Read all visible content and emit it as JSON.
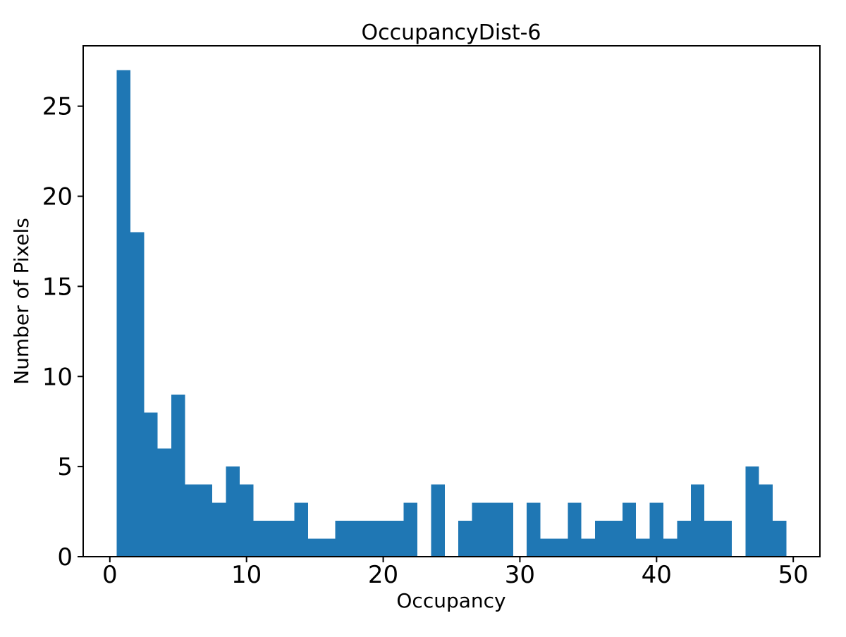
{
  "figure": {
    "background": "#ffffff",
    "text_color": "#000000",
    "spine_color": "#000000"
  },
  "chart_data": {
    "type": "bar",
    "subtype": "histogram",
    "title": "OccupancyDist-6",
    "xlabel": "Occupancy",
    "ylabel": "Number of Pixels",
    "bar_color": "#1f77b4",
    "bin_start": 0.5,
    "bin_width": 1,
    "counts": [
      27,
      18,
      8,
      6,
      9,
      4,
      4,
      3,
      5,
      4,
      2,
      2,
      2,
      3,
      1,
      1,
      2,
      2,
      2,
      2,
      2,
      3,
      0,
      4,
      0,
      2,
      3,
      3,
      3,
      0,
      3,
      1,
      1,
      3,
      1,
      2,
      2,
      3,
      1,
      3,
      1,
      2,
      4,
      2,
      2,
      0,
      5,
      4,
      2
    ],
    "xticks": [
      0,
      10,
      20,
      30,
      40,
      50
    ],
    "yticks": [
      0,
      5,
      10,
      15,
      20,
      25
    ],
    "xlim": [
      -1.95,
      51.95
    ],
    "ylim": [
      0,
      28.35
    ],
    "grid": false,
    "legend": null
  }
}
